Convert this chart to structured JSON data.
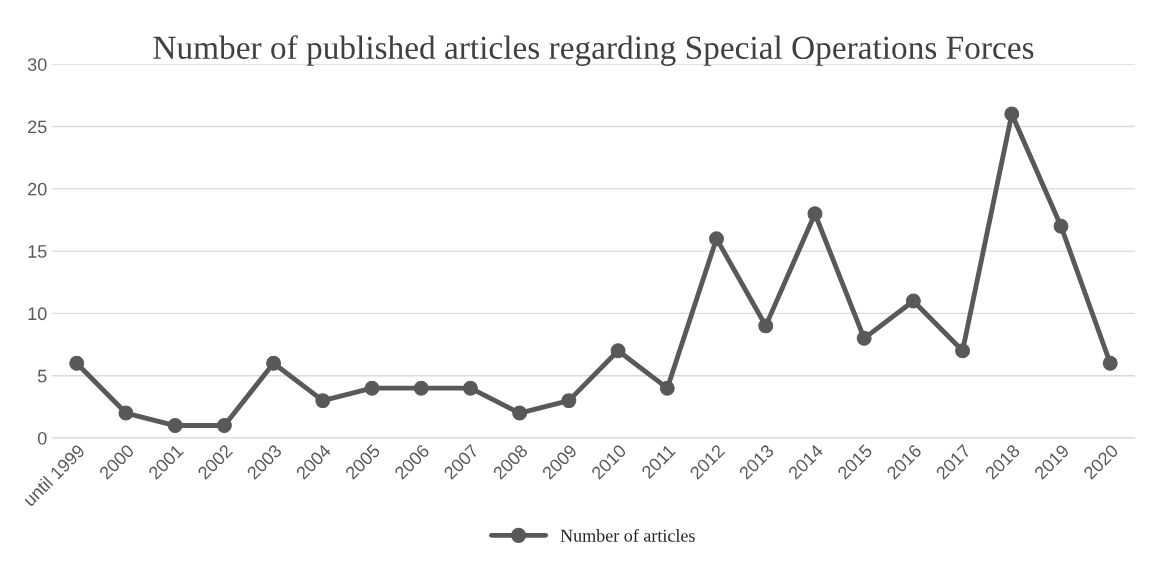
{
  "chart_data": {
    "type": "line",
    "title": "Number of published articles regarding Special Operations Forces",
    "categories": [
      "until 1999",
      "2000",
      "2001",
      "2002",
      "2003",
      "2004",
      "2005",
      "2006",
      "2007",
      "2008",
      "2009",
      "2010",
      "2011",
      "2012",
      "2013",
      "2014",
      "2015",
      "2016",
      "2017",
      "2018",
      "2019",
      "2020"
    ],
    "series": [
      {
        "name": "Number of articles",
        "color": "#595959",
        "values": [
          6,
          2,
          1,
          1,
          6,
          3,
          4,
          4,
          4,
          2,
          3,
          7,
          4,
          16,
          9,
          18,
          8,
          11,
          7,
          26,
          17,
          6
        ]
      }
    ],
    "ylim": [
      0,
      30
    ],
    "yticks": [
      0,
      5,
      10,
      15,
      20,
      25,
      30
    ],
    "grid": "y",
    "legend": "bottom",
    "marker": "circle",
    "line_style": "solid"
  }
}
